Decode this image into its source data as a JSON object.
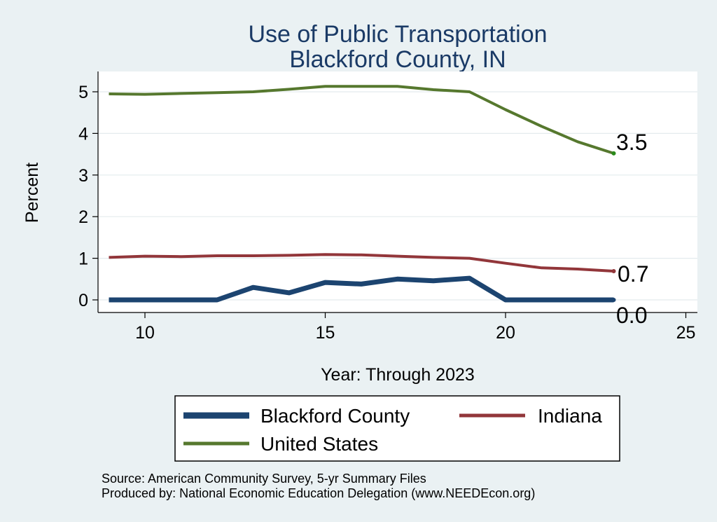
{
  "chart_data": {
    "type": "line",
    "title": "Use of Public Transportation",
    "subtitle": "Blackford County, IN",
    "xlabel": "Year: Through 2023",
    "ylabel": "Percent",
    "xlim": [
      9,
      25
    ],
    "ylim": [
      0,
      5
    ],
    "x_ticks": [
      10,
      15,
      20,
      25
    ],
    "y_ticks": [
      0,
      1,
      2,
      3,
      4,
      5
    ],
    "grid": "horizontal",
    "legend_position": "bottom",
    "series": [
      {
        "name": "Blackford County",
        "color": "#1c4470",
        "x": [
          9,
          10,
          11,
          12,
          13,
          14,
          15,
          16,
          17,
          18,
          19,
          20,
          21,
          22,
          23
        ],
        "values": [
          0.0,
          0.0,
          0.0,
          0.0,
          0.3,
          0.17,
          0.42,
          0.38,
          0.5,
          0.46,
          0.52,
          0.0,
          0.0,
          0.0,
          0.0
        ],
        "end_label": "0.0"
      },
      {
        "name": "Indiana",
        "color": "#92363a",
        "x": [
          9,
          10,
          11,
          12,
          13,
          14,
          15,
          16,
          17,
          18,
          19,
          20,
          21,
          22,
          23
        ],
        "values": [
          1.02,
          1.05,
          1.04,
          1.06,
          1.06,
          1.07,
          1.09,
          1.08,
          1.05,
          1.02,
          1.0,
          0.88,
          0.77,
          0.74,
          0.69
        ],
        "end_label": "0.7"
      },
      {
        "name": "United States",
        "color": "#56782e",
        "x": [
          9,
          10,
          11,
          12,
          13,
          14,
          15,
          16,
          17,
          18,
          19,
          20,
          21,
          22,
          23
        ],
        "values": [
          4.95,
          4.94,
          4.96,
          4.98,
          5.0,
          5.06,
          5.13,
          5.13,
          5.13,
          5.05,
          5.0,
          4.57,
          4.17,
          3.8,
          3.52
        ],
        "end_label": "3.5"
      }
    ],
    "notes": [
      "Source: American Community Survey, 5-yr Summary Files",
      "Produced by: National Economic Education Delegation (www.NEEDEcon.org)"
    ]
  }
}
